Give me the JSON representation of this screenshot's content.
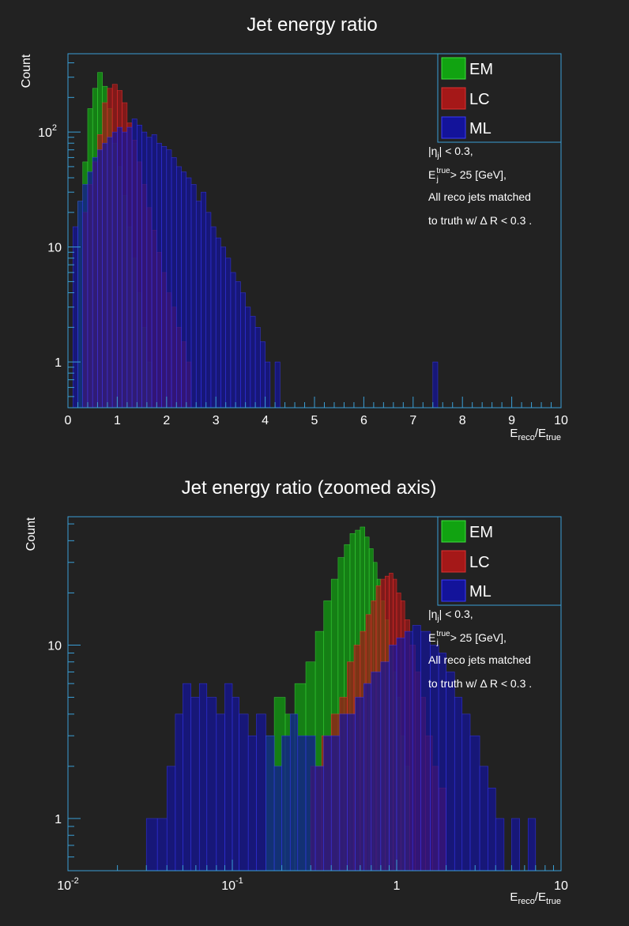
{
  "colors": {
    "background": "#222222",
    "frame": "#3a9fd6",
    "text": "#ffffff",
    "EM": "#11a311",
    "LC": "#a51818",
    "ML": "#13139a"
  },
  "chart_data": [
    {
      "type": "histogram",
      "title": "Jet energy ratio",
      "xlabel": "E_reco/E_true",
      "ylabel": "Count",
      "xscale": "linear",
      "yscale": "log",
      "xlim": [
        0,
        10
      ],
      "ylim": [
        0.4,
        480
      ],
      "x_ticks": [
        "0",
        "1",
        "2",
        "3",
        "4",
        "5",
        "6",
        "7",
        "8",
        "9",
        "10"
      ],
      "y_ticks": [
        "1",
        "10",
        "10^2"
      ],
      "legend": {
        "position": "top-right",
        "entries": [
          "EM",
          "LC",
          "ML"
        ]
      },
      "annotations": [
        "|η_j| < 0.3,",
        "E_j^true > 25 [GeV],",
        "All reco jets matched",
        "to truth w/ Δ R < 0.3 ."
      ],
      "series": [
        {
          "name": "EM",
          "color": "#11a311",
          "bins": [
            [
              0.2,
              0.3,
              25
            ],
            [
              0.3,
              0.4,
              55
            ],
            [
              0.4,
              0.5,
              160
            ],
            [
              0.5,
              0.6,
              240
            ],
            [
              0.6,
              0.7,
              330
            ],
            [
              0.7,
              0.8,
              250
            ],
            [
              0.8,
              0.9,
              160
            ],
            [
              0.9,
              1.0,
              80
            ],
            [
              1.0,
              1.1,
              50
            ],
            [
              1.1,
              1.2,
              28
            ],
            [
              1.2,
              1.3,
              15
            ],
            [
              1.3,
              1.4,
              8
            ],
            [
              1.4,
              1.5,
              4
            ],
            [
              1.5,
              1.6,
              2
            ],
            [
              1.6,
              1.7,
              1
            ]
          ]
        },
        {
          "name": "LC",
          "color": "#a51818",
          "bins": [
            [
              0.3,
              0.4,
              20
            ],
            [
              0.4,
              0.5,
              35
            ],
            [
              0.5,
              0.6,
              55
            ],
            [
              0.6,
              0.7,
              95
            ],
            [
              0.7,
              0.8,
              180
            ],
            [
              0.8,
              0.9,
              240
            ],
            [
              0.9,
              1.0,
              260
            ],
            [
              1.0,
              1.1,
              230
            ],
            [
              1.1,
              1.2,
              180
            ],
            [
              1.2,
              1.3,
              120
            ],
            [
              1.3,
              1.4,
              85
            ],
            [
              1.4,
              1.5,
              55
            ],
            [
              1.5,
              1.6,
              35
            ],
            [
              1.6,
              1.7,
              22
            ],
            [
              1.7,
              1.8,
              14
            ],
            [
              1.8,
              1.9,
              9
            ],
            [
              1.9,
              2.0,
              6
            ],
            [
              2.0,
              2.1,
              4
            ],
            [
              2.1,
              2.2,
              3
            ],
            [
              2.2,
              2.3,
              2
            ],
            [
              2.3,
              2.4,
              1.5
            ],
            [
              2.4,
              2.5,
              1
            ]
          ]
        },
        {
          "name": "ML",
          "color": "#13139a",
          "bins": [
            [
              0.1,
              0.2,
              15
            ],
            [
              0.2,
              0.3,
              25
            ],
            [
              0.3,
              0.4,
              35
            ],
            [
              0.4,
              0.5,
              45
            ],
            [
              0.5,
              0.6,
              60
            ],
            [
              0.6,
              0.7,
              70
            ],
            [
              0.7,
              0.8,
              80
            ],
            [
              0.8,
              0.9,
              90
            ],
            [
              0.9,
              1.0,
              100
            ],
            [
              1.0,
              1.1,
              110
            ],
            [
              1.1,
              1.2,
              100
            ],
            [
              1.2,
              1.3,
              110
            ],
            [
              1.3,
              1.4,
              130
            ],
            [
              1.4,
              1.5,
              115
            ],
            [
              1.5,
              1.6,
              100
            ],
            [
              1.6,
              1.7,
              90
            ],
            [
              1.7,
              1.8,
              95
            ],
            [
              1.8,
              1.9,
              80
            ],
            [
              1.9,
              2.0,
              75
            ],
            [
              2.0,
              2.1,
              70
            ],
            [
              2.1,
              2.2,
              60
            ],
            [
              2.2,
              2.3,
              50
            ],
            [
              2.3,
              2.4,
              45
            ],
            [
              2.4,
              2.5,
              40
            ],
            [
              2.5,
              2.6,
              35
            ],
            [
              2.6,
              2.7,
              25
            ],
            [
              2.7,
              2.8,
              30
            ],
            [
              2.8,
              2.9,
              20
            ],
            [
              2.9,
              3.0,
              15
            ],
            [
              3.0,
              3.1,
              12
            ],
            [
              3.1,
              3.2,
              10
            ],
            [
              3.2,
              3.3,
              8
            ],
            [
              3.3,
              3.4,
              6
            ],
            [
              3.4,
              3.5,
              5
            ],
            [
              3.5,
              3.6,
              4
            ],
            [
              3.6,
              3.7,
              3
            ],
            [
              3.7,
              3.8,
              2.5
            ],
            [
              3.8,
              3.9,
              2
            ],
            [
              3.9,
              4.0,
              1.5
            ],
            [
              4.0,
              4.1,
              1
            ],
            [
              4.2,
              4.3,
              1
            ],
            [
              7.4,
              7.5,
              1
            ]
          ]
        }
      ]
    },
    {
      "type": "histogram",
      "title": "Jet energy ratio (zoomed axis)",
      "xlabel": "E_reco/E_true",
      "ylabel": "Count",
      "xscale": "log",
      "yscale": "log",
      "xlim": [
        0.01,
        10
      ],
      "ylim": [
        0.5,
        55
      ],
      "x_ticks": [
        "10^-2",
        "10^-1",
        "1",
        "10"
      ],
      "y_ticks": [
        "1",
        "10"
      ],
      "legend": {
        "position": "top-right",
        "entries": [
          "EM",
          "LC",
          "ML"
        ]
      },
      "annotations": [
        "|η_j| < 0.3,",
        "E_j^true > 25 [GeV],",
        "All reco jets matched",
        "to truth w/ Δ R < 0.3 ."
      ],
      "series": [
        {
          "name": "EM",
          "color": "#11a311",
          "bins": [
            [
              0.16,
              0.18,
              3
            ],
            [
              0.18,
              0.21,
              5
            ],
            [
              0.21,
              0.24,
              4
            ],
            [
              0.24,
              0.28,
              6
            ],
            [
              0.28,
              0.32,
              8
            ],
            [
              0.32,
              0.36,
              12
            ],
            [
              0.36,
              0.4,
              18
            ],
            [
              0.4,
              0.44,
              24
            ],
            [
              0.44,
              0.48,
              32
            ],
            [
              0.48,
              0.52,
              38
            ],
            [
              0.52,
              0.56,
              44
            ],
            [
              0.56,
              0.6,
              46
            ],
            [
              0.6,
              0.64,
              48
            ],
            [
              0.64,
              0.68,
              42
            ],
            [
              0.68,
              0.72,
              36
            ],
            [
              0.72,
              0.76,
              30
            ],
            [
              0.76,
              0.8,
              24
            ],
            [
              0.8,
              0.85,
              18
            ],
            [
              0.85,
              0.9,
              14
            ],
            [
              0.9,
              0.95,
              10
            ],
            [
              0.95,
              1.0,
              7
            ],
            [
              1.0,
              1.06,
              5
            ],
            [
              1.06,
              1.12,
              3
            ],
            [
              1.12,
              1.2,
              2
            ]
          ]
        },
        {
          "name": "LC",
          "color": "#a51818",
          "bins": [
            [
              0.3,
              0.35,
              2
            ],
            [
              0.35,
              0.4,
              3
            ],
            [
              0.4,
              0.45,
              4
            ],
            [
              0.45,
              0.5,
              5
            ],
            [
              0.5,
              0.55,
              8
            ],
            [
              0.55,
              0.6,
              10
            ],
            [
              0.6,
              0.65,
              12
            ],
            [
              0.65,
              0.7,
              15
            ],
            [
              0.7,
              0.75,
              18
            ],
            [
              0.75,
              0.8,
              22
            ],
            [
              0.8,
              0.85,
              24
            ],
            [
              0.85,
              0.9,
              25
            ],
            [
              0.9,
              0.95,
              26
            ],
            [
              0.95,
              1.0,
              24
            ],
            [
              1.0,
              1.06,
              20
            ],
            [
              1.06,
              1.12,
              18
            ],
            [
              1.12,
              1.2,
              14
            ],
            [
              1.2,
              1.3,
              10
            ],
            [
              1.3,
              1.4,
              7
            ],
            [
              1.4,
              1.5,
              5
            ],
            [
              1.5,
              1.65,
              3
            ],
            [
              1.65,
              1.8,
              2
            ],
            [
              1.8,
              2.0,
              1.5
            ]
          ]
        },
        {
          "name": "ML",
          "color": "#13139a",
          "bins": [
            [
              0.03,
              0.035,
              1
            ],
            [
              0.035,
              0.04,
              1
            ],
            [
              0.04,
              0.045,
              2
            ],
            [
              0.045,
              0.05,
              4
            ],
            [
              0.05,
              0.056,
              6
            ],
            [
              0.056,
              0.063,
              5
            ],
            [
              0.063,
              0.07,
              6
            ],
            [
              0.07,
              0.08,
              5
            ],
            [
              0.08,
              0.09,
              4
            ],
            [
              0.09,
              0.1,
              6
            ],
            [
              0.1,
              0.11,
              5
            ],
            [
              0.11,
              0.125,
              4
            ],
            [
              0.125,
              0.14,
              3
            ],
            [
              0.14,
              0.16,
              4
            ],
            [
              0.16,
              0.18,
              3
            ],
            [
              0.18,
              0.2,
              2
            ],
            [
              0.2,
              0.225,
              3
            ],
            [
              0.225,
              0.25,
              4
            ],
            [
              0.25,
              0.28,
              3
            ],
            [
              0.28,
              0.32,
              3
            ],
            [
              0.32,
              0.36,
              2
            ],
            [
              0.36,
              0.4,
              3
            ],
            [
              0.4,
              0.45,
              3
            ],
            [
              0.45,
              0.5,
              4
            ],
            [
              0.5,
              0.56,
              4
            ],
            [
              0.56,
              0.63,
              5
            ],
            [
              0.63,
              0.7,
              6
            ],
            [
              0.7,
              0.8,
              7
            ],
            [
              0.8,
              0.9,
              8
            ],
            [
              0.9,
              1.0,
              10
            ],
            [
              1.0,
              1.12,
              11
            ],
            [
              1.12,
              1.25,
              12
            ],
            [
              1.25,
              1.4,
              13
            ],
            [
              1.4,
              1.6,
              12
            ],
            [
              1.6,
              1.8,
              10
            ],
            [
              1.8,
              2.0,
              9
            ],
            [
              2.0,
              2.25,
              7
            ],
            [
              2.25,
              2.5,
              5
            ],
            [
              2.5,
              2.8,
              4
            ],
            [
              2.8,
              3.2,
              3
            ],
            [
              3.2,
              3.6,
              2
            ],
            [
              3.6,
              4.0,
              1.5
            ],
            [
              4.0,
              4.5,
              1
            ],
            [
              5.0,
              5.6,
              1
            ],
            [
              6.3,
              7.0,
              1
            ]
          ]
        }
      ]
    }
  ]
}
